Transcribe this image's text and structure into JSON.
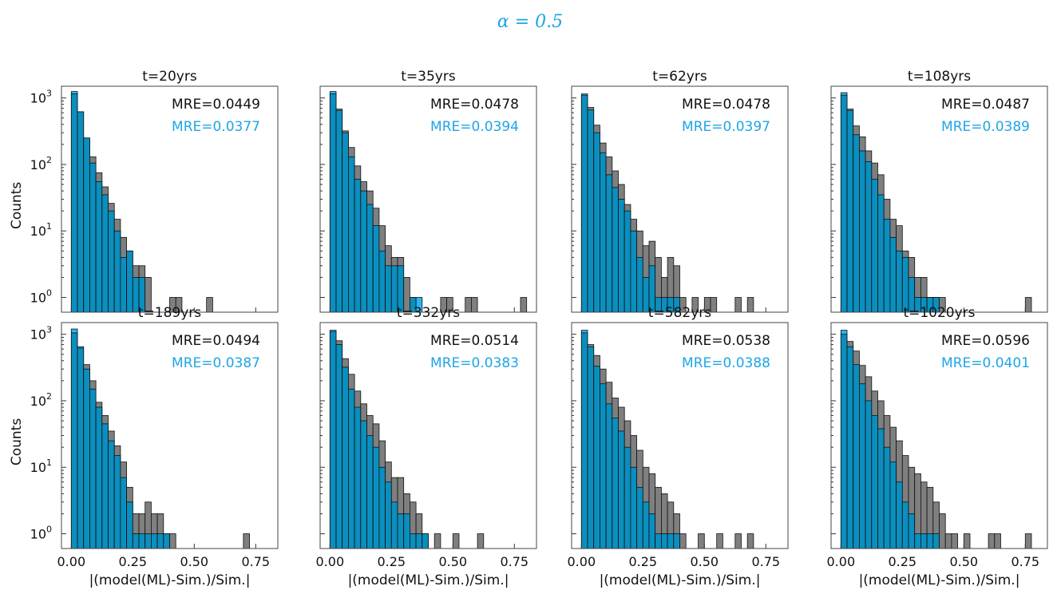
{
  "figure": {
    "suptitle": "α = 0.5",
    "colors": {
      "baseline": "#7f7f7f",
      "ml": "#29b6f6",
      "overlap": "#0a8fbf",
      "mre_baseline": "#111111",
      "mre_ml": "#1ea5e6"
    }
  },
  "chart_data": [
    {
      "type": "bar",
      "title": "t=20yrs",
      "mre_baseline": "MRE=0.0449",
      "mre_ml": "MRE=0.0377",
      "xlabel": "",
      "ylabel": "Counts",
      "xlim": [
        -0.04,
        0.84
      ],
      "ylog": true,
      "ylim": [
        0.6,
        1500
      ],
      "bin_width": 0.025,
      "show_x_ticks": false,
      "show_y_ticks": true,
      "x_ticks": [
        "0.00",
        "0.25",
        "0.50",
        "0.75"
      ],
      "y_ticks": [
        "10^0",
        "10^1",
        "10^2",
        "10^3"
      ],
      "series": [
        {
          "name": "baseline",
          "bin_start": 0.0,
          "values": [
            1150,
            620,
            250,
            130,
            75,
            46,
            26,
            15,
            8,
            5,
            3,
            3,
            2,
            0,
            0,
            0,
            0,
            0,
            0,
            0,
            0,
            0,
            0,
            0,
            0,
            0,
            0,
            0,
            0,
            0,
            0,
            0,
            0,
            0,
            0,
            0,
            0,
            0,
            0,
            0,
            0,
            0,
            0,
            0,
            0,
            0,
            0,
            0,
            0,
            0,
            0,
            0,
            0,
            0,
            0,
            0,
            0,
            0,
            0,
            0,
            0,
            0,
            0,
            0,
            0,
            0,
            0,
            0,
            0,
            0,
            0,
            0,
            0,
            0,
            0,
            0,
            0,
            0,
            0,
            0,
            0,
            0,
            0,
            0,
            0,
            0,
            0,
            0,
            0,
            0,
            0,
            0,
            0,
            0,
            0,
            0,
            0,
            0,
            0,
            0,
            0,
            0,
            0,
            0,
            0,
            0,
            0,
            0,
            0,
            0,
            0,
            0,
            0,
            0,
            0,
            0,
            0,
            0,
            0,
            0,
            0,
            0,
            0,
            0,
            0,
            0,
            0,
            0,
            0,
            0,
            0,
            0,
            0,
            0,
            0,
            0,
            0,
            0,
            0,
            0,
            0,
            0,
            0,
            0,
            0,
            0,
            0,
            0,
            0,
            0
          ]
        },
        {
          "name": "ml",
          "bin_start": 0.0,
          "values": [
            1250,
            620,
            250,
            105,
            55,
            35,
            20,
            10,
            4,
            5,
            2,
            2,
            0,
            0,
            0,
            0,
            0,
            0,
            0,
            0,
            0,
            0,
            0,
            0,
            0,
            0,
            0,
            0,
            0,
            0,
            0,
            0,
            0,
            0,
            0,
            0,
            0,
            0,
            0,
            0,
            0,
            0,
            0,
            0,
            0,
            0,
            0,
            0,
            0,
            0,
            0,
            0,
            0,
            0,
            0,
            0,
            0,
            0,
            0,
            0,
            0,
            0,
            0,
            0,
            0,
            0,
            0,
            0,
            0,
            0,
            0,
            0,
            0,
            0,
            0,
            0,
            0,
            0,
            0,
            0,
            0,
            0,
            0,
            0,
            0,
            0,
            0,
            0,
            0,
            0,
            0,
            0,
            0,
            0,
            0,
            0,
            0,
            0,
            0,
            0,
            0,
            0,
            0,
            0,
            0,
            0,
            0,
            0,
            0,
            0,
            0,
            0,
            0,
            0,
            0,
            0,
            0,
            0,
            0,
            0,
            0,
            0,
            0,
            0,
            0,
            0,
            0,
            0,
            0,
            0,
            0,
            0,
            0,
            0,
            0,
            0,
            0,
            0,
            0,
            0,
            0,
            0,
            0,
            0,
            0,
            0,
            0,
            0,
            0,
            0
          ]
        }
      ],
      "extra_baseline_bins": [
        [
          0.4,
          1
        ],
        [
          0.425,
          1
        ],
        [
          0.55,
          1
        ]
      ]
    },
    {
      "type": "bar",
      "title": "t=35yrs",
      "mre_baseline": "MRE=0.0478",
      "mre_ml": "MRE=0.0394",
      "xlabel": "",
      "ylabel": "",
      "xlim": [
        -0.04,
        0.84
      ],
      "ylog": true,
      "ylim": [
        0.6,
        1500
      ],
      "bin_width": 0.025,
      "show_x_ticks": false,
      "show_y_ticks": false,
      "x_ticks": [
        "0.00",
        "0.25",
        "0.50",
        "0.75"
      ],
      "y_ticks": [
        "10^0",
        "10^1",
        "10^2",
        "10^3"
      ],
      "series": [
        {
          "name": "baseline",
          "bin_start": 0.0,
          "values": [
            1150,
            680,
            320,
            180,
            95,
            55,
            40,
            22,
            12,
            6,
            4,
            4,
            2,
            1
          ]
        },
        {
          "name": "ml",
          "bin_start": 0.0,
          "values": [
            1250,
            650,
            300,
            130,
            60,
            40,
            25,
            12,
            5,
            3,
            3,
            3,
            0,
            1,
            1
          ]
        }
      ],
      "extra_baseline_bins": [
        [
          0.45,
          1
        ],
        [
          0.475,
          1
        ],
        [
          0.55,
          1
        ],
        [
          0.575,
          1
        ],
        [
          0.775,
          1
        ]
      ]
    },
    {
      "type": "bar",
      "title": "t=62yrs",
      "mre_baseline": "MRE=0.0478",
      "mre_ml": "MRE=0.0397",
      "xlabel": "",
      "ylabel": "",
      "xlim": [
        -0.04,
        0.84
      ],
      "ylog": true,
      "ylim": [
        0.6,
        1500
      ],
      "bin_width": 0.025,
      "show_x_ticks": false,
      "show_y_ticks": false,
      "x_ticks": [
        "0.00",
        "0.25",
        "0.50",
        "0.75"
      ],
      "y_ticks": [
        "10^0",
        "10^1",
        "10^2",
        "10^3"
      ],
      "series": [
        {
          "name": "baseline",
          "bin_start": 0.0,
          "values": [
            1100,
            720,
            390,
            210,
            130,
            80,
            50,
            25,
            15,
            10,
            6,
            7,
            4,
            2,
            4,
            3,
            1
          ]
        },
        {
          "name": "ml",
          "bin_start": 0.0,
          "values": [
            1150,
            660,
            300,
            150,
            70,
            45,
            30,
            20,
            10,
            4,
            2,
            3,
            1,
            1,
            1,
            1
          ]
        }
      ],
      "extra_baseline_bins": [
        [
          0.45,
          1
        ],
        [
          0.5,
          1
        ],
        [
          0.525,
          1
        ],
        [
          0.625,
          1
        ],
        [
          0.675,
          1
        ]
      ]
    },
    {
      "type": "bar",
      "title": "t=108yrs",
      "mre_baseline": "MRE=0.0487",
      "mre_ml": "MRE=0.0389",
      "xlabel": "",
      "ylabel": "",
      "xlim": [
        -0.04,
        0.84
      ],
      "ylog": true,
      "ylim": [
        0.6,
        1500
      ],
      "bin_width": 0.025,
      "show_x_ticks": false,
      "show_y_ticks": false,
      "x_ticks": [
        "0.00",
        "0.25",
        "0.50",
        "0.75"
      ],
      "y_ticks": [
        "10^0",
        "10^1",
        "10^2",
        "10^3"
      ],
      "series": [
        {
          "name": "baseline",
          "bin_start": 0.0,
          "values": [
            1100,
            680,
            380,
            260,
            160,
            105,
            70,
            30,
            15,
            12,
            5,
            4,
            2,
            2,
            1,
            1,
            1
          ]
        },
        {
          "name": "ml",
          "bin_start": 0.0,
          "values": [
            1200,
            650,
            280,
            160,
            110,
            60,
            35,
            15,
            8,
            5,
            4,
            2,
            1,
            1,
            1,
            1
          ]
        }
      ],
      "extra_baseline_bins": [
        [
          0.75,
          1
        ]
      ]
    },
    {
      "type": "bar",
      "title": "t=189yrs",
      "mre_baseline": "MRE=0.0494",
      "mre_ml": "MRE=0.0387",
      "xlabel": "|(model(ML)-Sim.)/Sim.|",
      "ylabel": "Counts",
      "xlim": [
        -0.04,
        0.84
      ],
      "ylog": true,
      "ylim": [
        0.6,
        1500
      ],
      "bin_width": 0.025,
      "show_x_ticks": true,
      "show_y_ticks": true,
      "x_ticks": [
        "0.00",
        "0.25",
        "0.50",
        "0.75"
      ],
      "y_ticks": [
        "10^0",
        "10^1",
        "10^2",
        "10^3"
      ],
      "series": [
        {
          "name": "baseline",
          "bin_start": 0.0,
          "values": [
            1050,
            620,
            350,
            200,
            95,
            60,
            35,
            21,
            12,
            5,
            2,
            2,
            3,
            2,
            2,
            1,
            1
          ]
        },
        {
          "name": "ml",
          "bin_start": 0.0,
          "values": [
            1200,
            650,
            300,
            150,
            80,
            45,
            25,
            15,
            7,
            3,
            1,
            1,
            1,
            1,
            1,
            1
          ]
        }
      ],
      "extra_baseline_bins": [
        [
          0.7,
          1
        ]
      ]
    },
    {
      "type": "bar",
      "title": "t=332yrs",
      "mre_baseline": "MRE=0.0514",
      "mre_ml": "MRE=0.0383",
      "xlabel": "|(model(ML)-Sim.)/Sim.|",
      "ylabel": "",
      "xlim": [
        -0.04,
        0.84
      ],
      "ylog": true,
      "ylim": [
        0.6,
        1500
      ],
      "bin_width": 0.025,
      "show_x_ticks": true,
      "show_y_ticks": false,
      "x_ticks": [
        "0.00",
        "0.25",
        "0.50",
        "0.75"
      ],
      "y_ticks": [
        "10^0",
        "10^1",
        "10^2",
        "10^3"
      ],
      "series": [
        {
          "name": "baseline",
          "bin_start": 0.0,
          "values": [
            1100,
            800,
            430,
            250,
            140,
            90,
            60,
            45,
            25,
            12,
            7,
            7,
            4,
            3,
            2,
            1
          ]
        },
        {
          "name": "ml",
          "bin_start": 0.0,
          "values": [
            1150,
            700,
            320,
            150,
            80,
            50,
            30,
            20,
            10,
            6,
            3,
            2,
            2,
            1,
            1,
            1
          ]
        }
      ],
      "extra_baseline_bins": [
        [
          0.425,
          1
        ],
        [
          0.5,
          1
        ],
        [
          0.6,
          1
        ]
      ]
    },
    {
      "type": "bar",
      "title": "t=582yrs",
      "mre_baseline": "MRE=0.0538",
      "mre_ml": "MRE=0.0388",
      "xlabel": "|(model(ML)-Sim.)/Sim.|",
      "ylabel": "",
      "xlim": [
        -0.04,
        0.84
      ],
      "ylog": true,
      "ylim": [
        0.6,
        1500
      ],
      "bin_width": 0.025,
      "show_x_ticks": true,
      "show_y_ticks": false,
      "x_ticks": [
        "0.00",
        "0.25",
        "0.50",
        "0.75"
      ],
      "y_ticks": [
        "10^0",
        "10^1",
        "10^2",
        "10^3"
      ],
      "series": [
        {
          "name": "baseline",
          "bin_start": 0.0,
          "values": [
            1050,
            700,
            480,
            300,
            190,
            110,
            80,
            50,
            30,
            18,
            10,
            8,
            5,
            4,
            3,
            2,
            1
          ]
        },
        {
          "name": "ml",
          "bin_start": 0.0,
          "values": [
            1150,
            650,
            330,
            180,
            90,
            55,
            35,
            20,
            10,
            5,
            3,
            2,
            1,
            1,
            1,
            1
          ]
        }
      ],
      "extra_baseline_bins": [
        [
          0.475,
          1
        ],
        [
          0.55,
          1
        ],
        [
          0.625,
          1
        ],
        [
          0.675,
          1
        ]
      ]
    },
    {
      "type": "bar",
      "title": "t=1020yrs",
      "mre_baseline": "MRE=0.0596",
      "mre_ml": "MRE=0.0401",
      "xlabel": "|(model(ML)-Sim.)/Sim.|",
      "ylabel": "",
      "xlim": [
        -0.04,
        0.84
      ],
      "ylog": true,
      "ylim": [
        0.6,
        1500
      ],
      "bin_width": 0.025,
      "show_x_ticks": true,
      "show_y_ticks": false,
      "x_ticks": [
        "0.00",
        "0.25",
        "0.50",
        "0.75"
      ],
      "y_ticks": [
        "10^0",
        "10^1",
        "10^2",
        "10^3"
      ],
      "series": [
        {
          "name": "baseline",
          "bin_start": 0.0,
          "values": [
            1000,
            780,
            560,
            340,
            230,
            140,
            100,
            60,
            40,
            25,
            15,
            10,
            8,
            6,
            5,
            3,
            2,
            1
          ]
        },
        {
          "name": "ml",
          "bin_start": 0.0,
          "values": [
            1150,
            650,
            350,
            180,
            100,
            60,
            38,
            20,
            12,
            6,
            3,
            2,
            1,
            1,
            1,
            1
          ]
        }
      ],
      "extra_baseline_bins": [
        [
          0.45,
          1
        ],
        [
          0.5,
          1
        ],
        [
          0.6,
          1
        ],
        [
          0.625,
          1
        ],
        [
          0.75,
          1
        ]
      ]
    }
  ]
}
